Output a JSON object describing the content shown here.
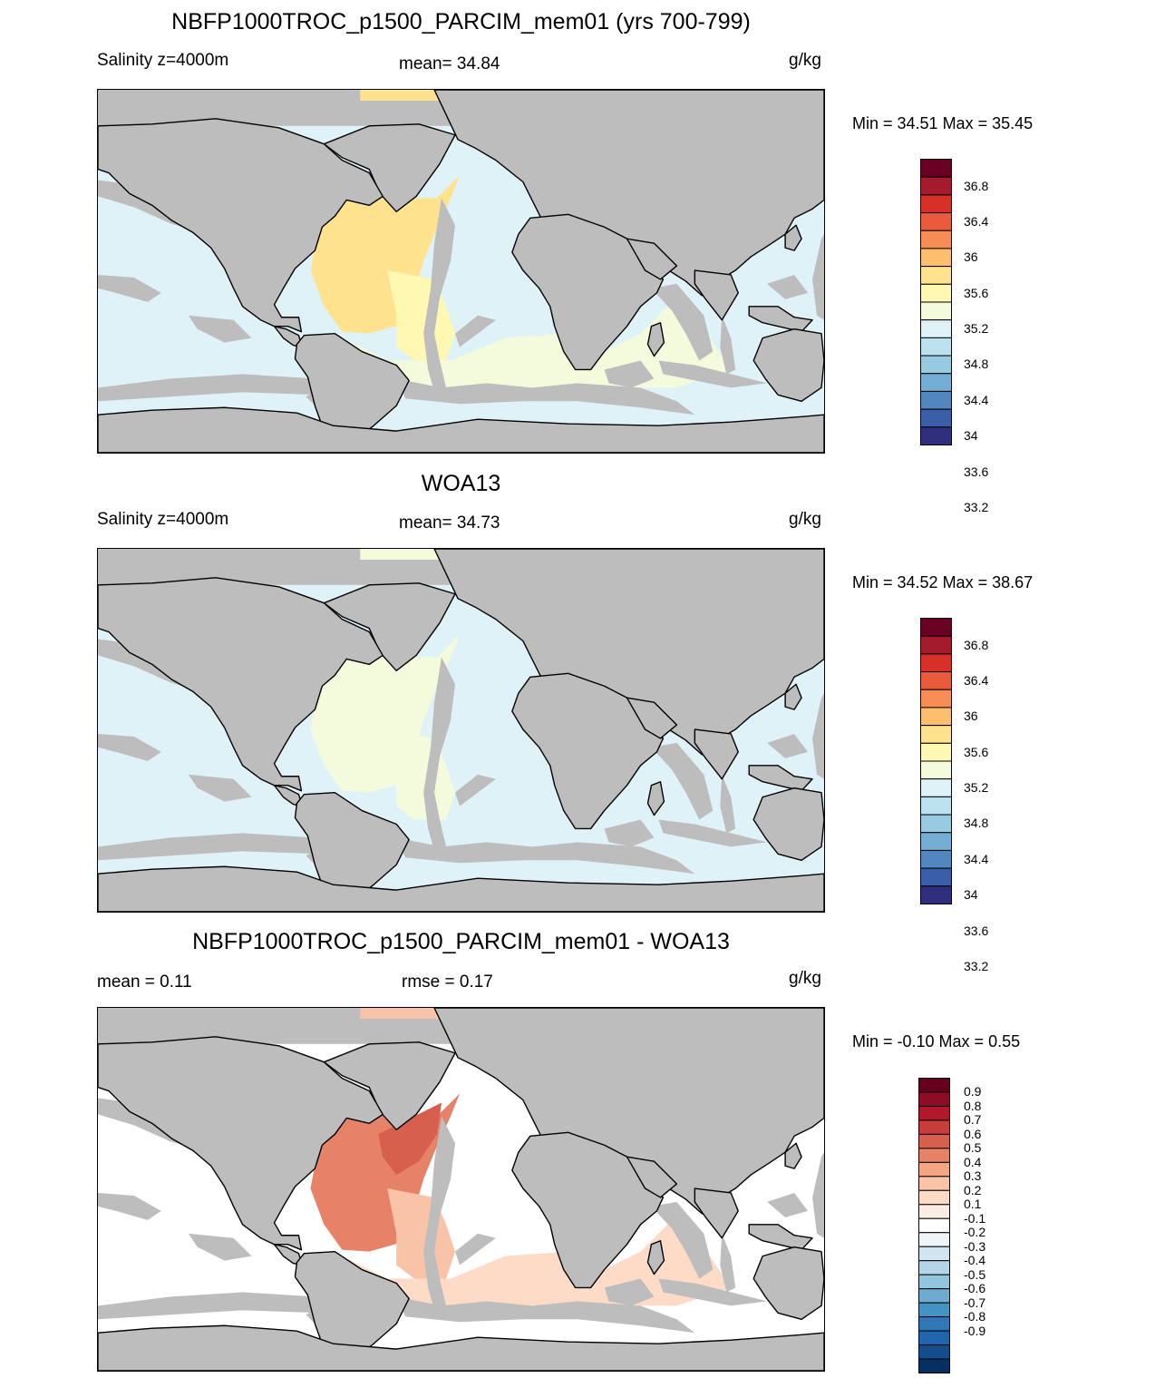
{
  "panels": [
    {
      "title": "NBFP1000TROC_p1500_PARCIM_mem01 (yrs 700-799)",
      "left_label": "Salinity z=4000m",
      "center_label": "mean=  34.84",
      "units": "g/kg",
      "minmax": "Min =  34.51 Max =  35.45",
      "colorbar": {
        "colors": [
          "#6a0024",
          "#a51a2c",
          "#d73027",
          "#ea5a3c",
          "#f58d55",
          "#fcbf6e",
          "#fee28e",
          "#fff8b3",
          "#f3fbdc",
          "#dff2f8",
          "#bce2ef",
          "#97cbe2",
          "#74aed4",
          "#5286be",
          "#3a5ea8",
          "#2f2f7e"
        ],
        "labels": [
          "36.8",
          "36.4",
          "36",
          "35.6",
          "35.2",
          "34.8",
          "34.4",
          "34",
          "33.6",
          "33.2"
        ]
      }
    },
    {
      "title": "WOA13",
      "left_label": "Salinity z=4000m",
      "center_label": "mean=  34.73",
      "units": "g/kg",
      "minmax": "Min =  34.52 Max =  38.67",
      "colorbar": {
        "colors": [
          "#6a0024",
          "#a51a2c",
          "#d73027",
          "#ea5a3c",
          "#f58d55",
          "#fcbf6e",
          "#fee28e",
          "#fff8b3",
          "#f3fbdc",
          "#dff2f8",
          "#bce2ef",
          "#97cbe2",
          "#74aed4",
          "#5286be",
          "#3a5ea8",
          "#2f2f7e"
        ],
        "labels": [
          "36.8",
          "36.4",
          "36",
          "35.6",
          "35.2",
          "34.8",
          "34.4",
          "34",
          "33.6",
          "33.2"
        ]
      }
    },
    {
      "title": "NBFP1000TROC_p1500_PARCIM_mem01 - WOA13",
      "left_label": "mean =   0.11",
      "center_label": "rmse =   0.17",
      "units": "g/kg",
      "minmax": "Min =  -0.10 Max =    0.55",
      "colorbar": {
        "colors": [
          "#67001f",
          "#8c0d25",
          "#b2182b",
          "#c73d3a",
          "#d6604d",
          "#e58267",
          "#f4a582",
          "#f8c3a6",
          "#fddbc7",
          "#fbede4",
          "#ffffff",
          "#eef4f8",
          "#d1e5f0",
          "#b4d5e7",
          "#92c5de",
          "#6fabd0",
          "#4393c3",
          "#3078b5",
          "#2166ac",
          "#144d8c",
          "#053061"
        ],
        "labels": [
          "0.9",
          "0.8",
          "0.7",
          "0.6",
          "0.5",
          "0.4",
          "0.3",
          "0.2",
          "0.1",
          "-0.1",
          "-0.2",
          "-0.3",
          "-0.4",
          "-0.5",
          "-0.6",
          "-0.7",
          "-0.8",
          "-0.9"
        ]
      }
    }
  ],
  "style": {
    "land": "#bdbdbd",
    "panel1_fills": {
      "pacific": "#dff2f8",
      "north_atlantic": "#fee28e",
      "south_atlantic": "#fff8b3",
      "southern": "#f3fbdc",
      "arctic": "#fee28e"
    },
    "panel2_fills": {
      "pacific": "#dff2f8",
      "north_atlantic": "#f3fbdc",
      "south_atlantic": "#f3fbdc",
      "southern": "#dff2f8",
      "arctic": "#f3fbdc"
    },
    "panel3_fills": {
      "pacific": "#ffffff",
      "north_atlantic": "#e58267",
      "north_atlantic_core": "#d6604d",
      "south_atlantic": "#f8c3a6",
      "southern": "#fddbc7",
      "arctic": "#f8c3a6"
    }
  }
}
